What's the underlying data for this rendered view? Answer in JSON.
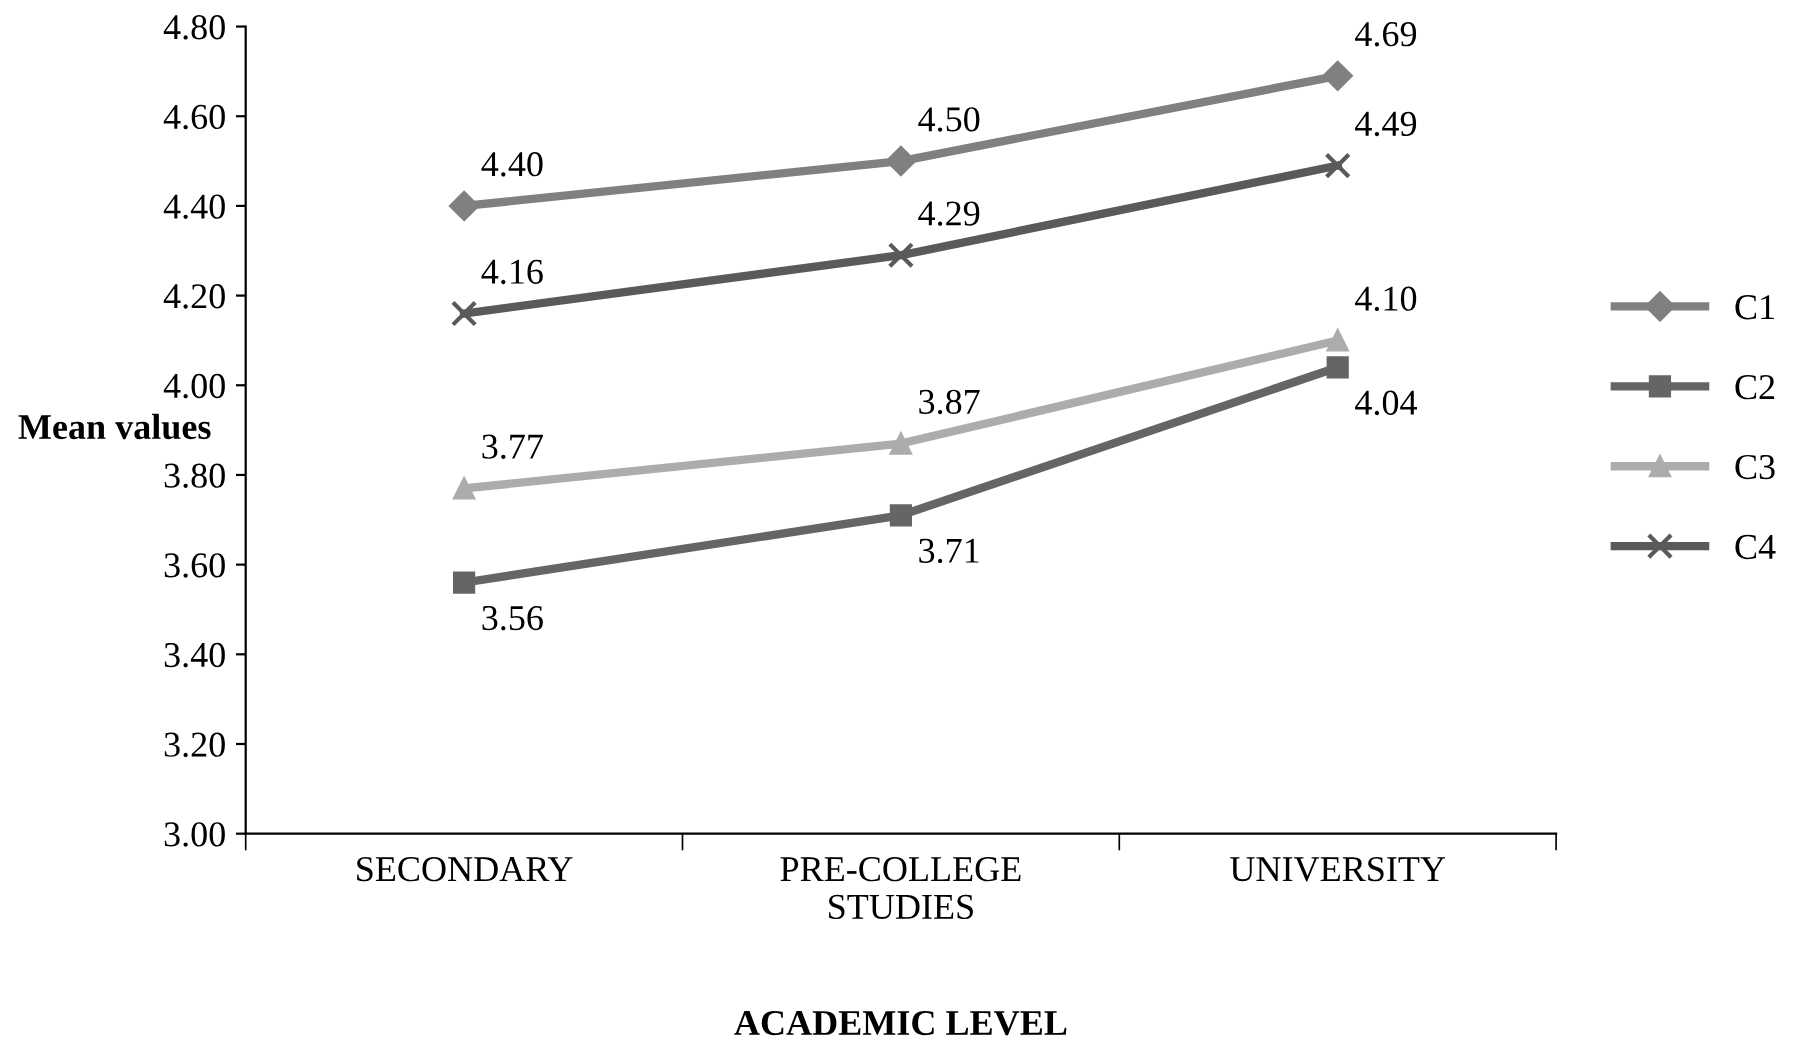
{
  "chart_data": {
    "type": "line",
    "xlabel": "ACADEMIC LEVEL",
    "ylabel": "Mean values",
    "categories": [
      "SECONDARY",
      "PRE-COLLEGE\nSTUDIES",
      "UNIVERSITY"
    ],
    "series": [
      {
        "name": "C1",
        "color": "#808080",
        "marker": "diamond",
        "values": [
          4.4,
          4.5,
          4.69
        ],
        "value_labels": [
          "4.40",
          "4.50",
          "4.69"
        ]
      },
      {
        "name": "C2",
        "color": "#656565",
        "marker": "square",
        "values": [
          3.56,
          3.71,
          4.04
        ],
        "value_labels": [
          "3.56",
          "3.71",
          "4.04"
        ]
      },
      {
        "name": "C3",
        "color": "#acacac",
        "marker": "triangle",
        "values": [
          3.77,
          3.87,
          4.1
        ],
        "value_labels": [
          "3.77",
          "3.87",
          "4.10"
        ]
      },
      {
        "name": "C4",
        "color": "#5a5a5a",
        "marker": "cross",
        "values": [
          4.16,
          4.29,
          4.49
        ],
        "value_labels": [
          "4.16",
          "4.29",
          "4.49"
        ]
      }
    ],
    "ylim": [
      3.0,
      4.8
    ],
    "yticks": [
      {
        "value": 3.0,
        "label": "3.00"
      },
      {
        "value": 3.2,
        "label": "3.20"
      },
      {
        "value": 3.4,
        "label": "3.40"
      },
      {
        "value": 3.6,
        "label": "3.60"
      },
      {
        "value": 3.8,
        "label": "3.80"
      },
      {
        "value": 4.0,
        "label": "4.00"
      },
      {
        "value": 4.2,
        "label": "4.20"
      },
      {
        "value": 4.4,
        "label": "4.40"
      },
      {
        "value": 4.6,
        "label": "4.60"
      },
      {
        "value": 4.8,
        "label": "4.80"
      }
    ],
    "grid": false,
    "legend": "right",
    "line_style": "solid"
  }
}
